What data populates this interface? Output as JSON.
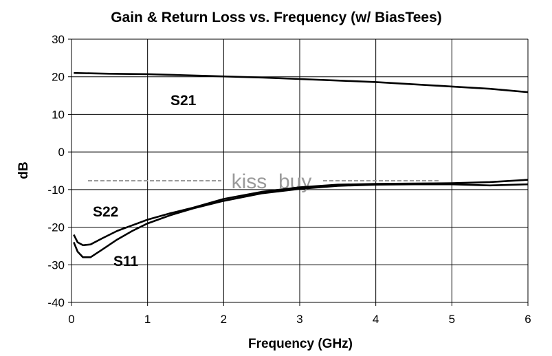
{
  "chart_data": {
    "type": "line",
    "title": "Gain & Return Loss vs. Frequency (w/ BiasTees)",
    "xlabel": "Frequency (GHz)",
    "ylabel": "dB",
    "xlim": [
      0,
      6
    ],
    "ylim": [
      -40,
      30
    ],
    "xticks": [
      0,
      1,
      2,
      3,
      4,
      5,
      6
    ],
    "yticks": [
      -40,
      -30,
      -20,
      -10,
      0,
      10,
      20,
      30
    ],
    "grid": true,
    "colors": {
      "line": "#000000",
      "grid": "#000000",
      "watermark": "#9a9a9a"
    },
    "watermark": "kiss_buy",
    "series": [
      {
        "name": "S21",
        "x": [
          0.03,
          0.3,
          0.5,
          1.0,
          1.5,
          2.0,
          2.5,
          3.0,
          3.5,
          4.0,
          4.5,
          5.0,
          5.5,
          6.0
        ],
        "y": [
          21.0,
          20.9,
          20.8,
          20.7,
          20.4,
          20.1,
          19.8,
          19.4,
          19.0,
          18.6,
          18.0,
          17.4,
          16.8,
          15.9
        ]
      },
      {
        "name": "S22",
        "x": [
          0.03,
          0.08,
          0.15,
          0.25,
          0.4,
          0.6,
          0.8,
          1.0,
          1.3,
          1.6,
          2.0,
          2.5,
          3.0,
          3.5,
          4.0,
          4.5,
          5.0,
          5.5,
          6.0
        ],
        "y": [
          -22.0,
          -24.0,
          -24.8,
          -24.6,
          -23.0,
          -21.0,
          -19.5,
          -18.0,
          -16.3,
          -14.8,
          -12.5,
          -10.6,
          -9.4,
          -8.7,
          -8.5,
          -8.4,
          -8.3,
          -8.0,
          -7.4
        ]
      },
      {
        "name": "S11",
        "x": [
          0.03,
          0.08,
          0.15,
          0.25,
          0.4,
          0.6,
          0.8,
          1.0,
          1.3,
          1.6,
          2.0,
          2.5,
          3.0,
          3.5,
          4.0,
          4.5,
          5.0,
          5.5,
          6.0
        ],
        "y": [
          -24.0,
          -26.5,
          -28.0,
          -28.0,
          -26.0,
          -23.3,
          -21.0,
          -19.0,
          -16.8,
          -15.0,
          -13.0,
          -11.0,
          -9.8,
          -9.0,
          -8.7,
          -8.6,
          -8.6,
          -8.9,
          -8.6
        ]
      }
    ]
  }
}
